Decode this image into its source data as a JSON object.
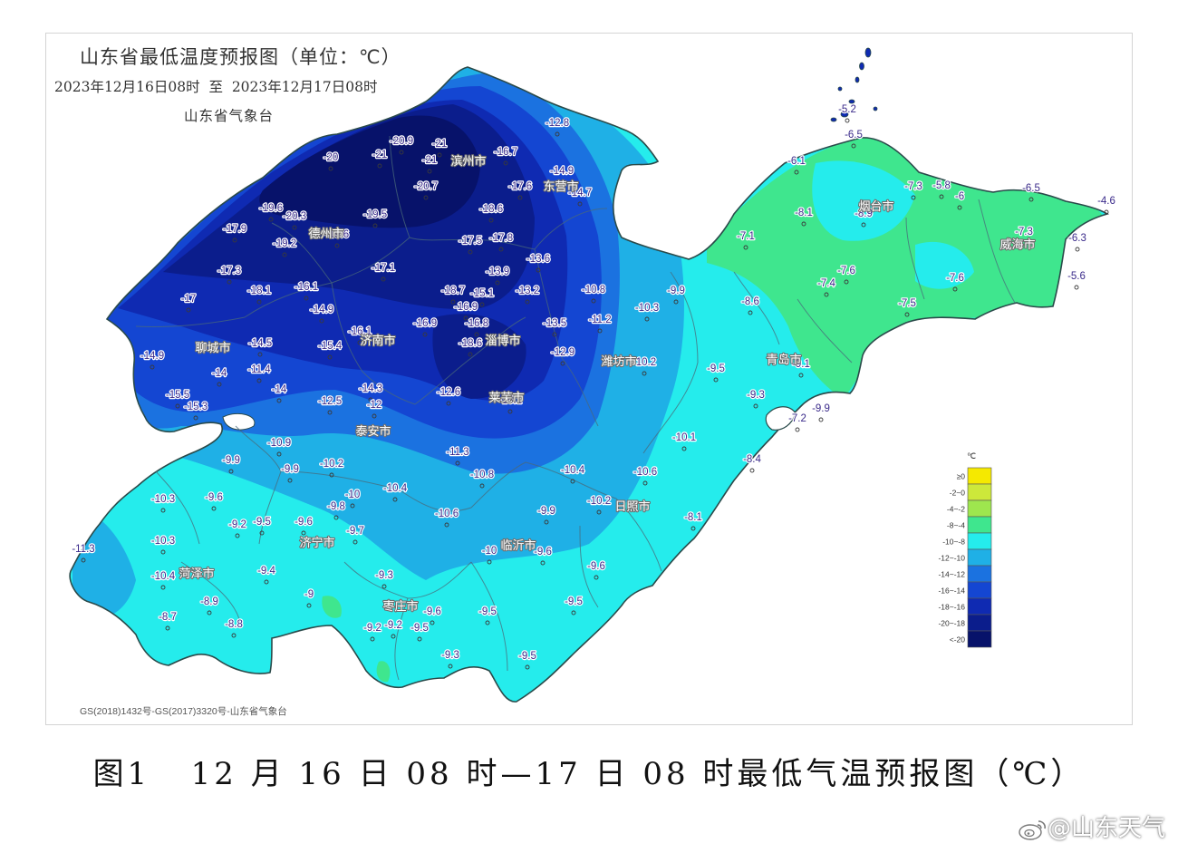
{
  "header": {
    "title": "山东省最低温度预报图（单位：℃）",
    "period": "2023年12月16日08时  至  2023年12月17日08时",
    "issuer": "山东省气象台"
  },
  "copyright": "GS(2018)1432号-GS(2017)3320号-山东省气象台",
  "caption": "图1   12 月 16 日 08 时—17 日 08 时最低气温预报图（℃）",
  "watermark": "@山东天气",
  "legend": {
    "unit": "℃",
    "items": [
      {
        "label": "≥0",
        "color": "#f5e900"
      },
      {
        "label": "-2~0",
        "color": "#cde83a"
      },
      {
        "label": "-4~-2",
        "color": "#9ee64e"
      },
      {
        "label": "-8~-4",
        "color": "#3fe68e"
      },
      {
        "label": "-10~-8",
        "color": "#25ecec"
      },
      {
        "label": "-12~-10",
        "color": "#1fb0e6"
      },
      {
        "label": "-14~-12",
        "color": "#1b72e0"
      },
      {
        "label": "-16~-14",
        "color": "#1446d2"
      },
      {
        "label": "-18~-16",
        "color": "#0f2ab2"
      },
      {
        "label": "-20~-18",
        "color": "#0b1d8c"
      },
      {
        "label": "<-20",
        "color": "#07126a"
      }
    ]
  },
  "cities": [
    "滨州市",
    "东营市",
    "德州市",
    "聊城市",
    "济南市",
    "淄博市",
    "潍坊市",
    "烟台市",
    "威海市",
    "青岛市",
    "日照市",
    "泰安市",
    "莱芜市",
    "济宁市",
    "菏泽市",
    "枣庄市",
    "临沂市"
  ],
  "stations": [
    "-12.8",
    "-20.9",
    "-21",
    "-20",
    "-21",
    "-21",
    "-16.7",
    "-14.9",
    "-17.6",
    "-14.7",
    "-20.7",
    "-19.6",
    "-20.3",
    "-19.5",
    "-18.6",
    "-17.9",
    "-19.2",
    "-19.6",
    "-17.5",
    "-17.8",
    "-13.6",
    "-17.3",
    "-17.1",
    "-13.9",
    "-17",
    "-18.1",
    "-16.1",
    "-18.7",
    "-15.1",
    "-13.2",
    "-10.8",
    "-10.3",
    "-9.9",
    "-16.9",
    "-14.9",
    "-16.1",
    "-16.9",
    "-16.8",
    "-13.5",
    "-11.2",
    "-14.9",
    "-14.5",
    "-15.4",
    "-18.6",
    "-12.9",
    "-14",
    "-11.4",
    "-10.2",
    "-9.5",
    "-15.5",
    "-15.3",
    "-14",
    "-12.5",
    "-14.3",
    "-12",
    "-12.6",
    "-15.1",
    "-9.3",
    "-10.9",
    "-11.3",
    "-10.1",
    "-9.9",
    "-9.9",
    "-10.2",
    "-10.8",
    "-10.4",
    "-10.6",
    "-10.3",
    "-9.6",
    "-9.8",
    "-10",
    "-10.4",
    "-10.2",
    "-9.2",
    "-9.5",
    "-9.6",
    "-9.7",
    "-10.6",
    "-9.9",
    "-8.1",
    "-11.3",
    "-10.3",
    "-10",
    "-9.6",
    "-9.4",
    "-9.3",
    "-9.6",
    "-10.4",
    "-8.9",
    "-9",
    "-9.5",
    "-8.7",
    "-8.8",
    "-9.6",
    "-9.5",
    "-9.2",
    "-9.2",
    "-9.5",
    "-9.3",
    "-9.5",
    "-5.2",
    "-6.5",
    "-6.1",
    "-7.3",
    "-5.8",
    "-6",
    "-6.5",
    "-4.6",
    "-8.1",
    "-8.9",
    "-7.1",
    "-7.3",
    "-6.3",
    "-5.6",
    "-7.6",
    "-7.4",
    "-7.6",
    "-8.6",
    "-7.5",
    "-9.1",
    "-7.2",
    "-9.9",
    "-8.4"
  ]
}
